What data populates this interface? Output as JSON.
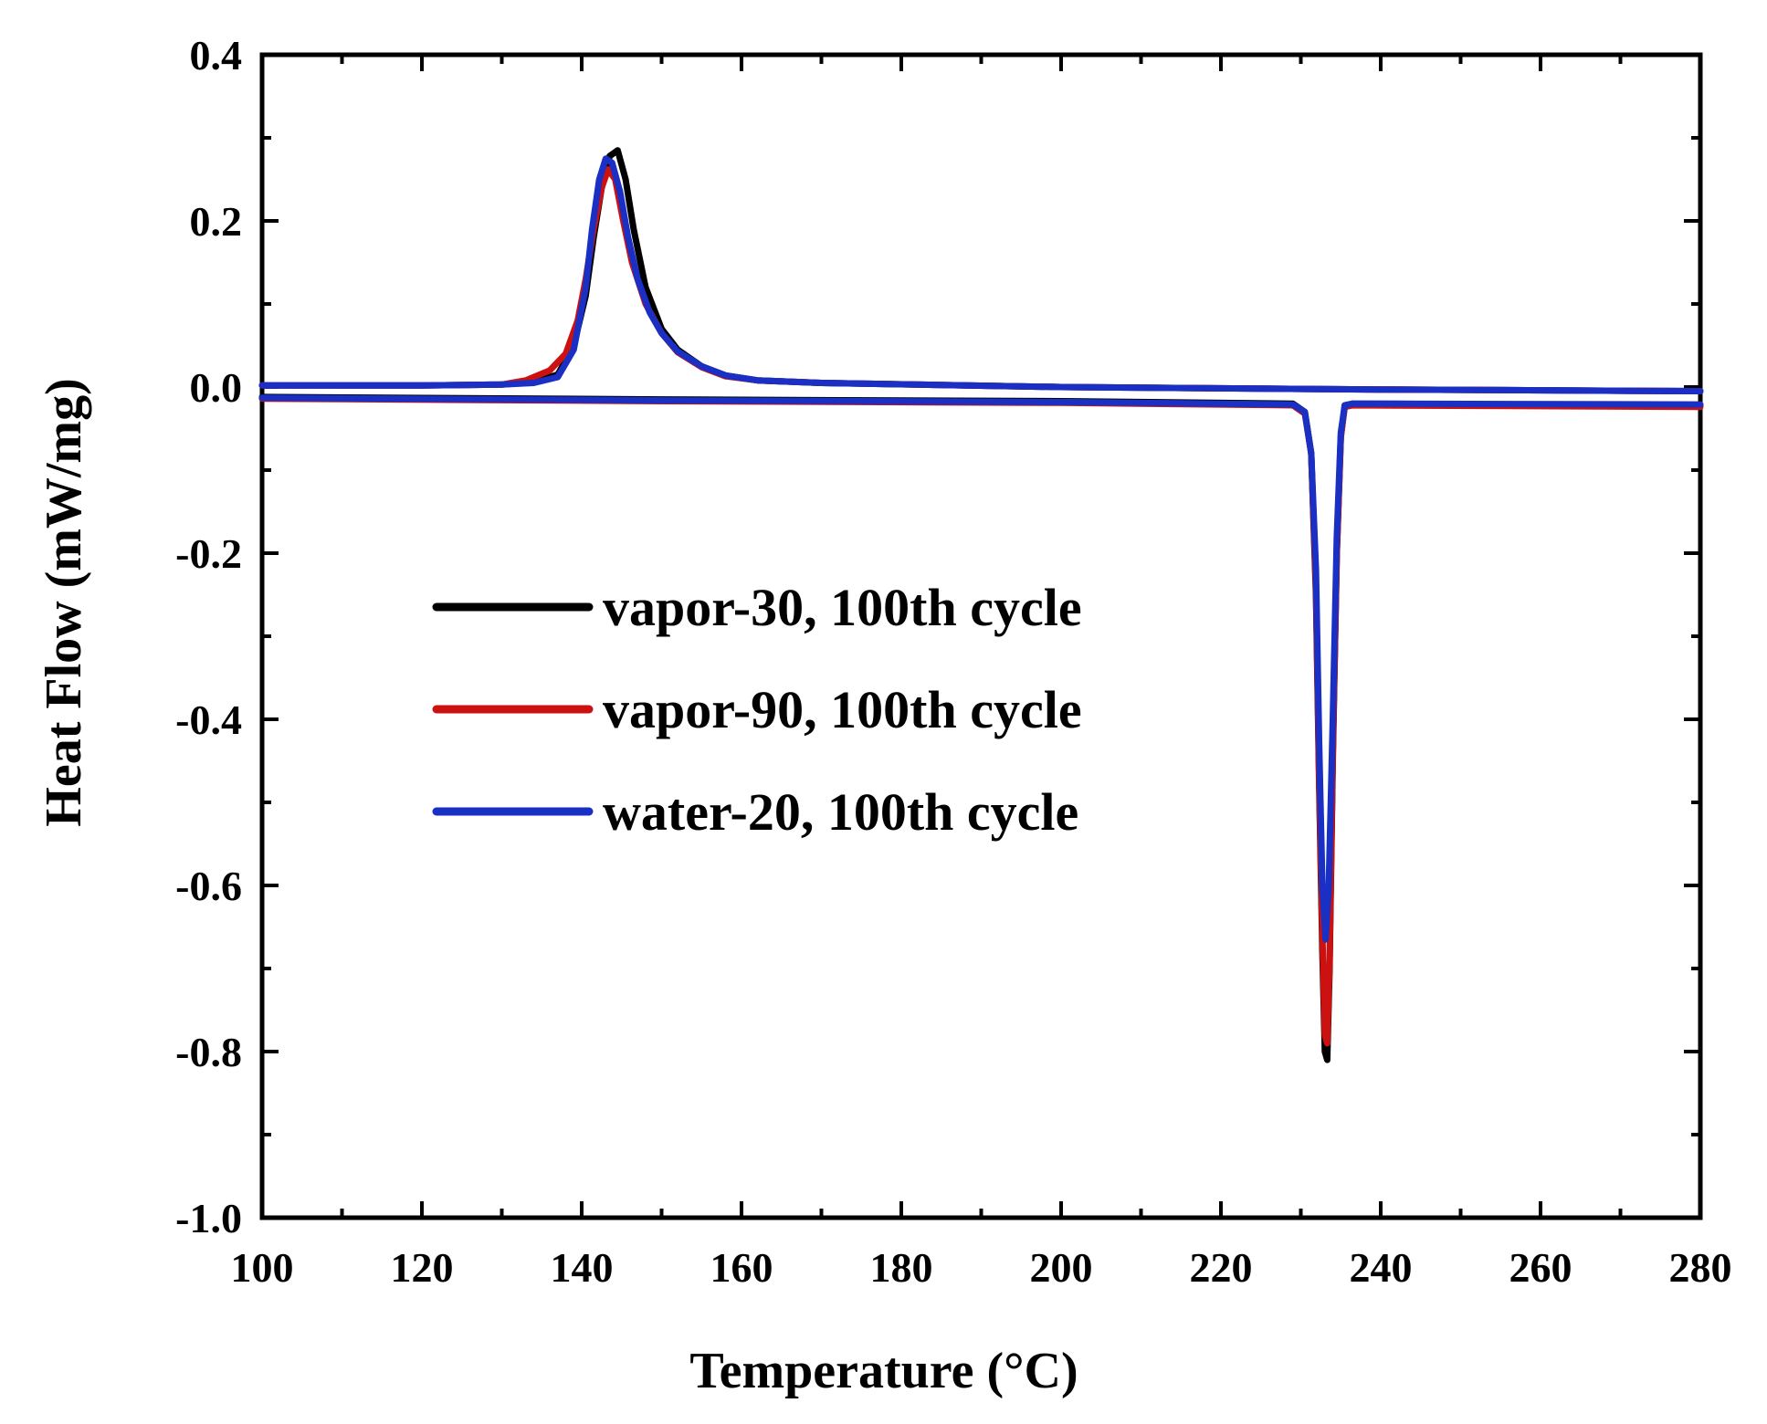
{
  "chart_data": {
    "type": "line",
    "title": "",
    "xlabel": "Temperature (°C)",
    "ylabel": "Heat Flow (mW/mg)",
    "xlim": [
      100,
      280
    ],
    "ylim": [
      -1.0,
      0.4
    ],
    "x_ticks": [
      100,
      120,
      140,
      160,
      180,
      200,
      220,
      240,
      260,
      280
    ],
    "x_tick_labels": [
      "100",
      "120",
      "140",
      "160",
      "180",
      "200",
      "220",
      "240",
      "260",
      "280"
    ],
    "y_ticks": [
      0.4,
      0.2,
      0.0,
      -0.2,
      -0.4,
      -0.6,
      -0.8,
      -1.0
    ],
    "y_tick_labels": [
      "0.4",
      "0.2",
      "0.0",
      "-0.2",
      "-0.4",
      "-0.6",
      "-0.8",
      "-1.0"
    ],
    "grid": false,
    "legend_position": "center-left",
    "series": [
      {
        "name": "vapor-30, 100th cycle",
        "color": "#000000",
        "segments": [
          {
            "x": [
              100,
              120,
              130,
              134,
              137,
              139,
              140.5,
              141.5,
              142.5,
              143.5,
              144.5,
              145.5,
              146.5,
              148,
              150,
              152,
              155,
              158,
              162,
              170,
              200,
              240,
              280
            ],
            "y": [
              0.002,
              0.002,
              0.003,
              0.006,
              0.015,
              0.05,
              0.11,
              0.18,
              0.24,
              0.278,
              0.285,
              0.25,
              0.19,
              0.12,
              0.07,
              0.045,
              0.025,
              0.014,
              0.008,
              0.005,
              0.0,
              -0.003,
              -0.005
            ]
          },
          {
            "x": [
              100,
              150,
              200,
              229,
              230.5,
              231.3,
              231.9,
              232.3,
              232.7,
              233.0,
              233.3,
              233.6,
              234.0,
              234.5,
              235.0,
              235.5,
              236.5,
              280
            ],
            "y": [
              -0.012,
              -0.015,
              -0.017,
              -0.02,
              -0.03,
              -0.08,
              -0.25,
              -0.48,
              -0.68,
              -0.8,
              -0.81,
              -0.7,
              -0.45,
              -0.2,
              -0.06,
              -0.022,
              -0.02,
              -0.022
            ]
          }
        ]
      },
      {
        "name": "vapor-90, 100th cycle",
        "color": "#cc1111",
        "segments": [
          {
            "x": [
              100,
              120,
              130,
              133,
              136,
              138,
              139.5,
              140.5,
              141.5,
              142.5,
              143.3,
              144.2,
              145.2,
              146.3,
              148,
              150,
              152,
              155,
              158,
              162,
              170,
              200,
              240,
              280
            ],
            "y": [
              0.002,
              0.002,
              0.003,
              0.008,
              0.02,
              0.04,
              0.08,
              0.13,
              0.19,
              0.24,
              0.262,
              0.25,
              0.2,
              0.15,
              0.1,
              0.065,
              0.042,
              0.024,
              0.013,
              0.008,
              0.005,
              0.0,
              -0.003,
              -0.005
            ]
          },
          {
            "x": [
              100,
              150,
              200,
              229,
              230.5,
              231.3,
              231.9,
              232.3,
              232.7,
              233.0,
              233.3,
              233.6,
              234.0,
              234.5,
              235.0,
              235.5,
              236.5,
              280
            ],
            "y": [
              -0.014,
              -0.017,
              -0.019,
              -0.022,
              -0.032,
              -0.08,
              -0.24,
              -0.47,
              -0.66,
              -0.78,
              -0.79,
              -0.69,
              -0.44,
              -0.2,
              -0.06,
              -0.024,
              -0.022,
              -0.024
            ]
          }
        ]
      },
      {
        "name": "water-20, 100th cycle",
        "color": "#1a2fc4",
        "segments": [
          {
            "x": [
              100,
              120,
              130,
              134,
              137,
              139,
              140.5,
              141.3,
              142.2,
              143.0,
              143.8,
              144.8,
              145.8,
              147,
              148.5,
              150,
              152,
              155,
              158,
              162,
              170,
              200,
              240,
              280
            ],
            "y": [
              0.002,
              0.002,
              0.003,
              0.005,
              0.012,
              0.045,
              0.12,
              0.19,
              0.25,
              0.275,
              0.27,
              0.235,
              0.18,
              0.13,
              0.09,
              0.065,
              0.043,
              0.025,
              0.014,
              0.008,
              0.005,
              0.0,
              -0.003,
              -0.005
            ]
          },
          {
            "x": [
              100,
              150,
              200,
              229,
              230.5,
              231.3,
              231.9,
              232.3,
              232.7,
              233.1,
              233.5,
              234.0,
              234.5,
              235.0,
              235.5,
              236.5,
              280
            ],
            "y": [
              -0.013,
              -0.016,
              -0.018,
              -0.021,
              -0.03,
              -0.08,
              -0.22,
              -0.43,
              -0.6,
              -0.665,
              -0.6,
              -0.4,
              -0.18,
              -0.055,
              -0.022,
              -0.02,
              -0.021
            ]
          }
        ]
      }
    ]
  }
}
